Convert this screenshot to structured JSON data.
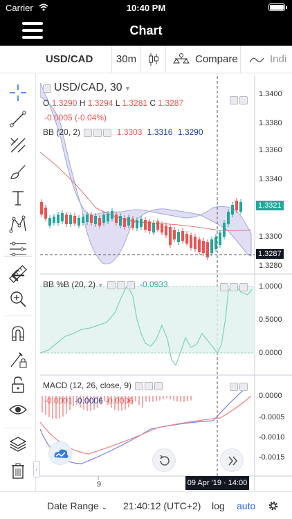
{
  "status_bar": {
    "carrier": "Carrier",
    "time": "10:40 PM"
  },
  "nav": {
    "title": "Chart"
  },
  "toolbar": {
    "symbol": "USD/CAD",
    "interval": "30m",
    "compare": "Compare",
    "indicators": "Indi"
  },
  "main_pane": {
    "title": "USD/CAD, 30",
    "ohlc": {
      "o_label": "O",
      "o": "1.3290",
      "h_label": "H",
      "h": "1.3294",
      "l_label": "L",
      "l": "1.3281",
      "c_label": "C",
      "c": "1.3287"
    },
    "change": "-0.0005 (-0.04%)",
    "bb_label": "BB (20, 2)",
    "bb_values": [
      "1.3303",
      "1.3316",
      "1.3290"
    ],
    "ticks": [
      "1.3400",
      "1.3380",
      "1.3360",
      "1.3340",
      "1.3300",
      "1.3280"
    ],
    "last_price": "1.3321",
    "crosshair_price": "1.3287"
  },
  "bbpb_pane": {
    "label": "BB %B (20, 2)",
    "value": "-0.0933",
    "ticks": [
      "1.0000",
      "0.5000",
      "0.0000"
    ]
  },
  "macd_pane": {
    "label": "MACD (12, 26, close, 9)",
    "values": [
      "-0.0001",
      "-0.0006",
      "-0.0006"
    ],
    "ticks": [
      "0.0000",
      "-0.0005",
      "-0.0010",
      "-0.0015"
    ]
  },
  "x_axis": {
    "tick": "9",
    "crosshair_time": "09 Apr '19 · 14:00"
  },
  "bottom_bar": {
    "date_range": "Date Range",
    "clock": "21:40:12 (UTC+2)",
    "log": "log",
    "auto": "auto"
  },
  "colors": {
    "up": "#26a69a",
    "down": "#ef5350",
    "bb_fill": "#d4d0f0",
    "bb_band": "#9fa8da",
    "bb_basis": "#e57373",
    "bbpb_fill": "#dff1ee",
    "bbpb_line": "#7ed0c0",
    "macd_line": "#7b83eb",
    "signal_line": "#f08080",
    "accent": "#2962ff",
    "last_price_bg": "#26a69a",
    "crosshair_bg": "#131722"
  },
  "icons": {
    "sidebar": [
      "crosshair-icon",
      "trend-line-icon",
      "pitchfork-icon",
      "brush-icon",
      "text-icon",
      "pattern-icon",
      "fib-icon",
      "back-arrow-icon",
      "ruler-icon",
      "zoom-in-icon",
      "magnet-icon",
      "lock-drawing-icon",
      "unlock-icon",
      "eye-icon",
      "layers-icon",
      "trash-icon"
    ]
  }
}
